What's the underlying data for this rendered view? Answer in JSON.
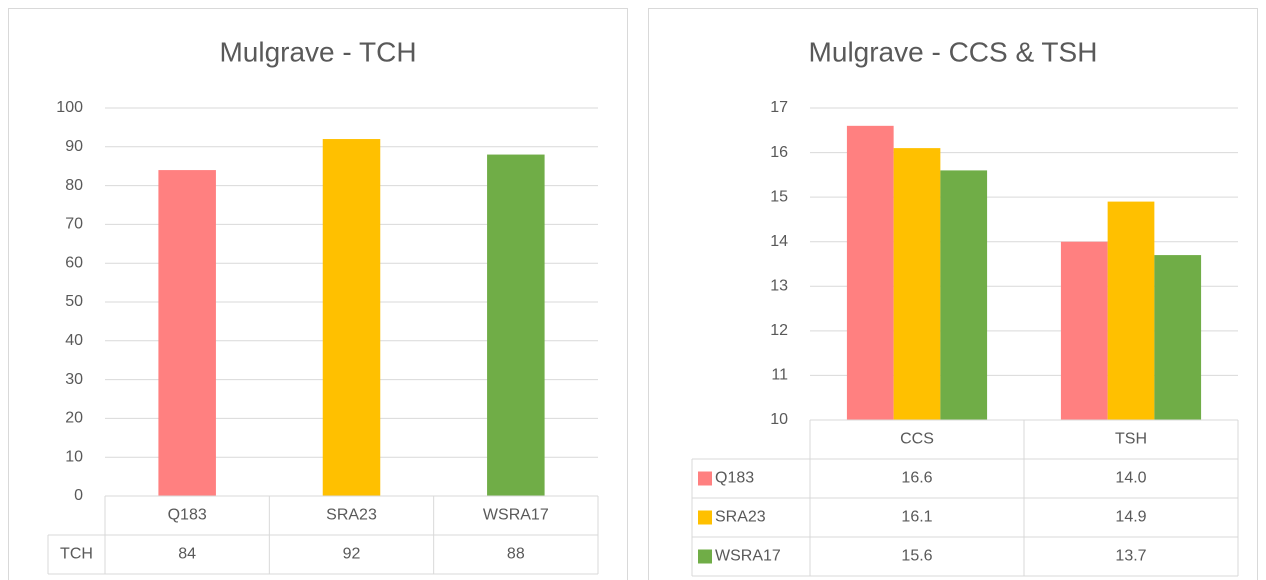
{
  "chart_data": [
    {
      "type": "bar",
      "title": "Mulgrave - TCH",
      "categories": [
        "Q183",
        "SRA23",
        "WSRA17"
      ],
      "series": [
        {
          "name": "TCH",
          "colors": [
            "#ff8080",
            "#ffc000",
            "#70ad47"
          ],
          "values": [
            84,
            92,
            88
          ]
        }
      ],
      "ylim": [
        0,
        100
      ],
      "yticks": [
        0,
        10,
        20,
        30,
        40,
        50,
        60,
        70,
        80,
        90,
        100
      ],
      "grid": true,
      "data_table": true
    },
    {
      "type": "bar",
      "title": "Mulgrave - CCS & TSH",
      "categories": [
        "CCS",
        "TSH"
      ],
      "series": [
        {
          "name": "Q183",
          "color": "#ff8080",
          "values": [
            16.6,
            14.0
          ],
          "value_labels": [
            "16.6",
            "14.0"
          ]
        },
        {
          "name": "SRA23",
          "color": "#ffc000",
          "values": [
            16.1,
            14.9
          ],
          "value_labels": [
            "16.1",
            "14.9"
          ]
        },
        {
          "name": "WSRA17",
          "color": "#70ad47",
          "values": [
            15.6,
            13.7
          ],
          "value_labels": [
            "15.6",
            "13.7"
          ]
        }
      ],
      "ylim": [
        10,
        17
      ],
      "yticks": [
        10,
        11,
        12,
        13,
        14,
        15,
        16,
        17
      ],
      "grid": true,
      "data_table": true
    }
  ]
}
